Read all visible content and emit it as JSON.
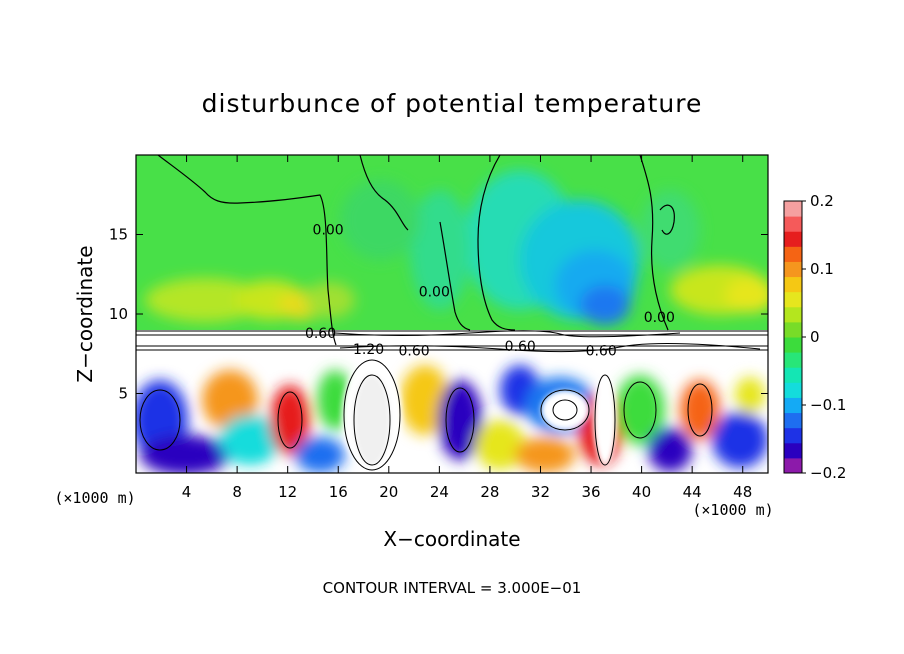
{
  "chart_data": {
    "type": "heatmap",
    "title": "disturbunce of potential temperature",
    "xlabel": "X−coordinate",
    "ylabel": "Z−coordinate",
    "x_unit": "(×1000 m)",
    "y_unit": "(×1000 m)",
    "xlim": [
      0,
      50
    ],
    "ylim": [
      0,
      20
    ],
    "x_ticks": [
      4,
      8,
      12,
      16,
      20,
      24,
      28,
      32,
      36,
      40,
      44,
      48
    ],
    "y_ticks": [
      5,
      10,
      15
    ],
    "colorbar": {
      "range": [
        -0.2,
        0.2
      ],
      "ticks": [
        "0.2",
        "0.1",
        "0",
        "−0.1",
        "−0.2"
      ],
      "tick_values": [
        0.2,
        0.1,
        0,
        -0.1,
        -0.2
      ],
      "colors": [
        "#8c1aaa",
        "#2a00bf",
        "#1e32e6",
        "#1e6ef0",
        "#14aaf5",
        "#14dcdc",
        "#14e6b4",
        "#28e678",
        "#3cdc3c",
        "#78dc28",
        "#b4e61e",
        "#e6e61e",
        "#f5c814",
        "#f5961e",
        "#f56414",
        "#e61e1e",
        "#f55a5a",
        "#f5a0a0"
      ]
    },
    "contour_labels": [
      {
        "text": "0.00",
        "x": 15.2,
        "z": 15.3
      },
      {
        "text": "0.00",
        "x": 23.6,
        "z": 11.4
      },
      {
        "text": "0.00",
        "x": 41.4,
        "z": 9.8
      },
      {
        "text": "0.60",
        "x": 14.6,
        "z": 8.8
      },
      {
        "text": "1.20",
        "x": 18.4,
        "z": 7.8
      },
      {
        "text": "0.60",
        "x": 22.0,
        "z": 7.7
      },
      {
        "text": "0.60",
        "x": 30.4,
        "z": 8.0
      },
      {
        "text": "0.60",
        "x": 36.8,
        "z": 7.7
      }
    ],
    "contour_interval_text": "CONTOUR INTERVAL = 3.000E−01"
  }
}
